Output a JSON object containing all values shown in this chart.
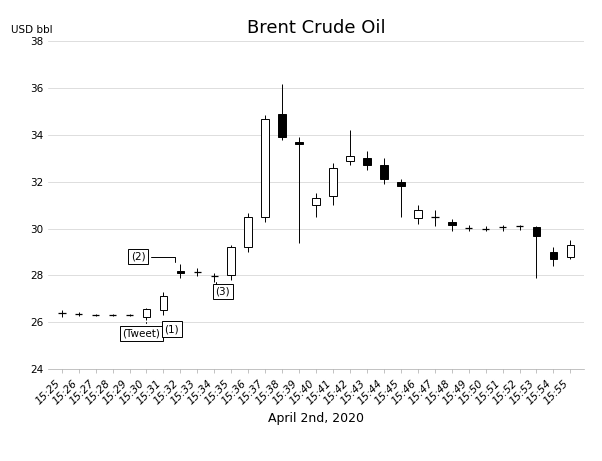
{
  "title": "Brent Crude Oil",
  "xlabel": "April 2nd, 2020",
  "ylabel": "USD bbl",
  "ylim": [
    24,
    38
  ],
  "yticks": [
    24,
    26,
    28,
    30,
    32,
    34,
    36,
    38
  ],
  "background_color": "#ffffff",
  "candles": [
    {
      "time": "15:25",
      "open": 26.35,
      "high": 26.5,
      "low": 26.2,
      "close": 26.4,
      "color": "white"
    },
    {
      "time": "15:26",
      "open": 26.35,
      "high": 26.45,
      "low": 26.25,
      "close": 26.35,
      "color": "white"
    },
    {
      "time": "15:27",
      "open": 26.3,
      "high": 26.35,
      "low": 26.25,
      "close": 26.3,
      "color": "white"
    },
    {
      "time": "15:28",
      "open": 26.3,
      "high": 26.35,
      "low": 26.25,
      "close": 26.3,
      "color": "white"
    },
    {
      "time": "15:29",
      "open": 26.3,
      "high": 26.35,
      "low": 26.25,
      "close": 26.3,
      "color": "white"
    },
    {
      "time": "15:30",
      "open": 26.2,
      "high": 26.6,
      "low": 26.1,
      "close": 26.55,
      "color": "white"
    },
    {
      "time": "15:31",
      "open": 26.5,
      "high": 27.3,
      "low": 26.3,
      "close": 27.1,
      "color": "white"
    },
    {
      "time": "15:32",
      "open": 28.2,
      "high": 28.5,
      "low": 27.9,
      "close": 28.1,
      "color": "black"
    },
    {
      "time": "15:33",
      "open": 28.15,
      "high": 28.3,
      "low": 27.95,
      "close": 28.1,
      "color": "white"
    },
    {
      "time": "15:34",
      "open": 27.95,
      "high": 28.1,
      "low": 27.7,
      "close": 27.95,
      "color": "white"
    },
    {
      "time": "15:35",
      "open": 28.0,
      "high": 29.3,
      "low": 27.8,
      "close": 29.2,
      "color": "white"
    },
    {
      "time": "15:36",
      "open": 29.2,
      "high": 30.65,
      "low": 29.0,
      "close": 30.5,
      "color": "white"
    },
    {
      "time": "15:37",
      "open": 30.5,
      "high": 34.85,
      "low": 30.3,
      "close": 34.7,
      "color": "white"
    },
    {
      "time": "15:38",
      "open": 34.9,
      "high": 36.2,
      "low": 33.8,
      "close": 33.9,
      "color": "black"
    },
    {
      "time": "15:39",
      "open": 33.7,
      "high": 33.9,
      "low": 29.4,
      "close": 33.6,
      "color": "black"
    },
    {
      "time": "15:40",
      "open": 31.0,
      "high": 31.5,
      "low": 30.5,
      "close": 31.3,
      "color": "white"
    },
    {
      "time": "15:41",
      "open": 31.4,
      "high": 32.8,
      "low": 31.0,
      "close": 32.6,
      "color": "white"
    },
    {
      "time": "15:42",
      "open": 32.9,
      "high": 34.2,
      "low": 32.7,
      "close": 33.1,
      "color": "white"
    },
    {
      "time": "15:43",
      "open": 33.0,
      "high": 33.3,
      "low": 32.5,
      "close": 32.7,
      "color": "black"
    },
    {
      "time": "15:44",
      "open": 32.7,
      "high": 33.0,
      "low": 31.9,
      "close": 32.1,
      "color": "black"
    },
    {
      "time": "15:45",
      "open": 32.0,
      "high": 32.1,
      "low": 30.5,
      "close": 31.8,
      "color": "black"
    },
    {
      "time": "15:46",
      "open": 30.8,
      "high": 31.0,
      "low": 30.2,
      "close": 30.45,
      "color": "white"
    },
    {
      "time": "15:47",
      "open": 30.5,
      "high": 30.8,
      "low": 30.1,
      "close": 30.45,
      "color": "white"
    },
    {
      "time": "15:48",
      "open": 30.3,
      "high": 30.4,
      "low": 29.9,
      "close": 30.15,
      "color": "black"
    },
    {
      "time": "15:49",
      "open": 30.05,
      "high": 30.15,
      "low": 29.9,
      "close": 30.0,
      "color": "white"
    },
    {
      "time": "15:50",
      "open": 30.0,
      "high": 30.1,
      "low": 29.9,
      "close": 30.0,
      "color": "white"
    },
    {
      "time": "15:51",
      "open": 30.05,
      "high": 30.15,
      "low": 29.9,
      "close": 30.1,
      "color": "white"
    },
    {
      "time": "15:52",
      "open": 30.1,
      "high": 30.15,
      "low": 29.95,
      "close": 30.1,
      "color": "black"
    },
    {
      "time": "15:53",
      "open": 30.05,
      "high": 30.1,
      "low": 27.9,
      "close": 29.7,
      "color": "black"
    },
    {
      "time": "15:54",
      "open": 29.0,
      "high": 29.2,
      "low": 28.4,
      "close": 28.7,
      "color": "black"
    },
    {
      "time": "15:55",
      "open": 28.8,
      "high": 29.5,
      "low": 28.7,
      "close": 29.3,
      "color": "white"
    }
  ],
  "title_fontsize": 13,
  "tick_fontsize": 7.5,
  "xlabel_fontsize": 9,
  "bar_width": 0.45
}
